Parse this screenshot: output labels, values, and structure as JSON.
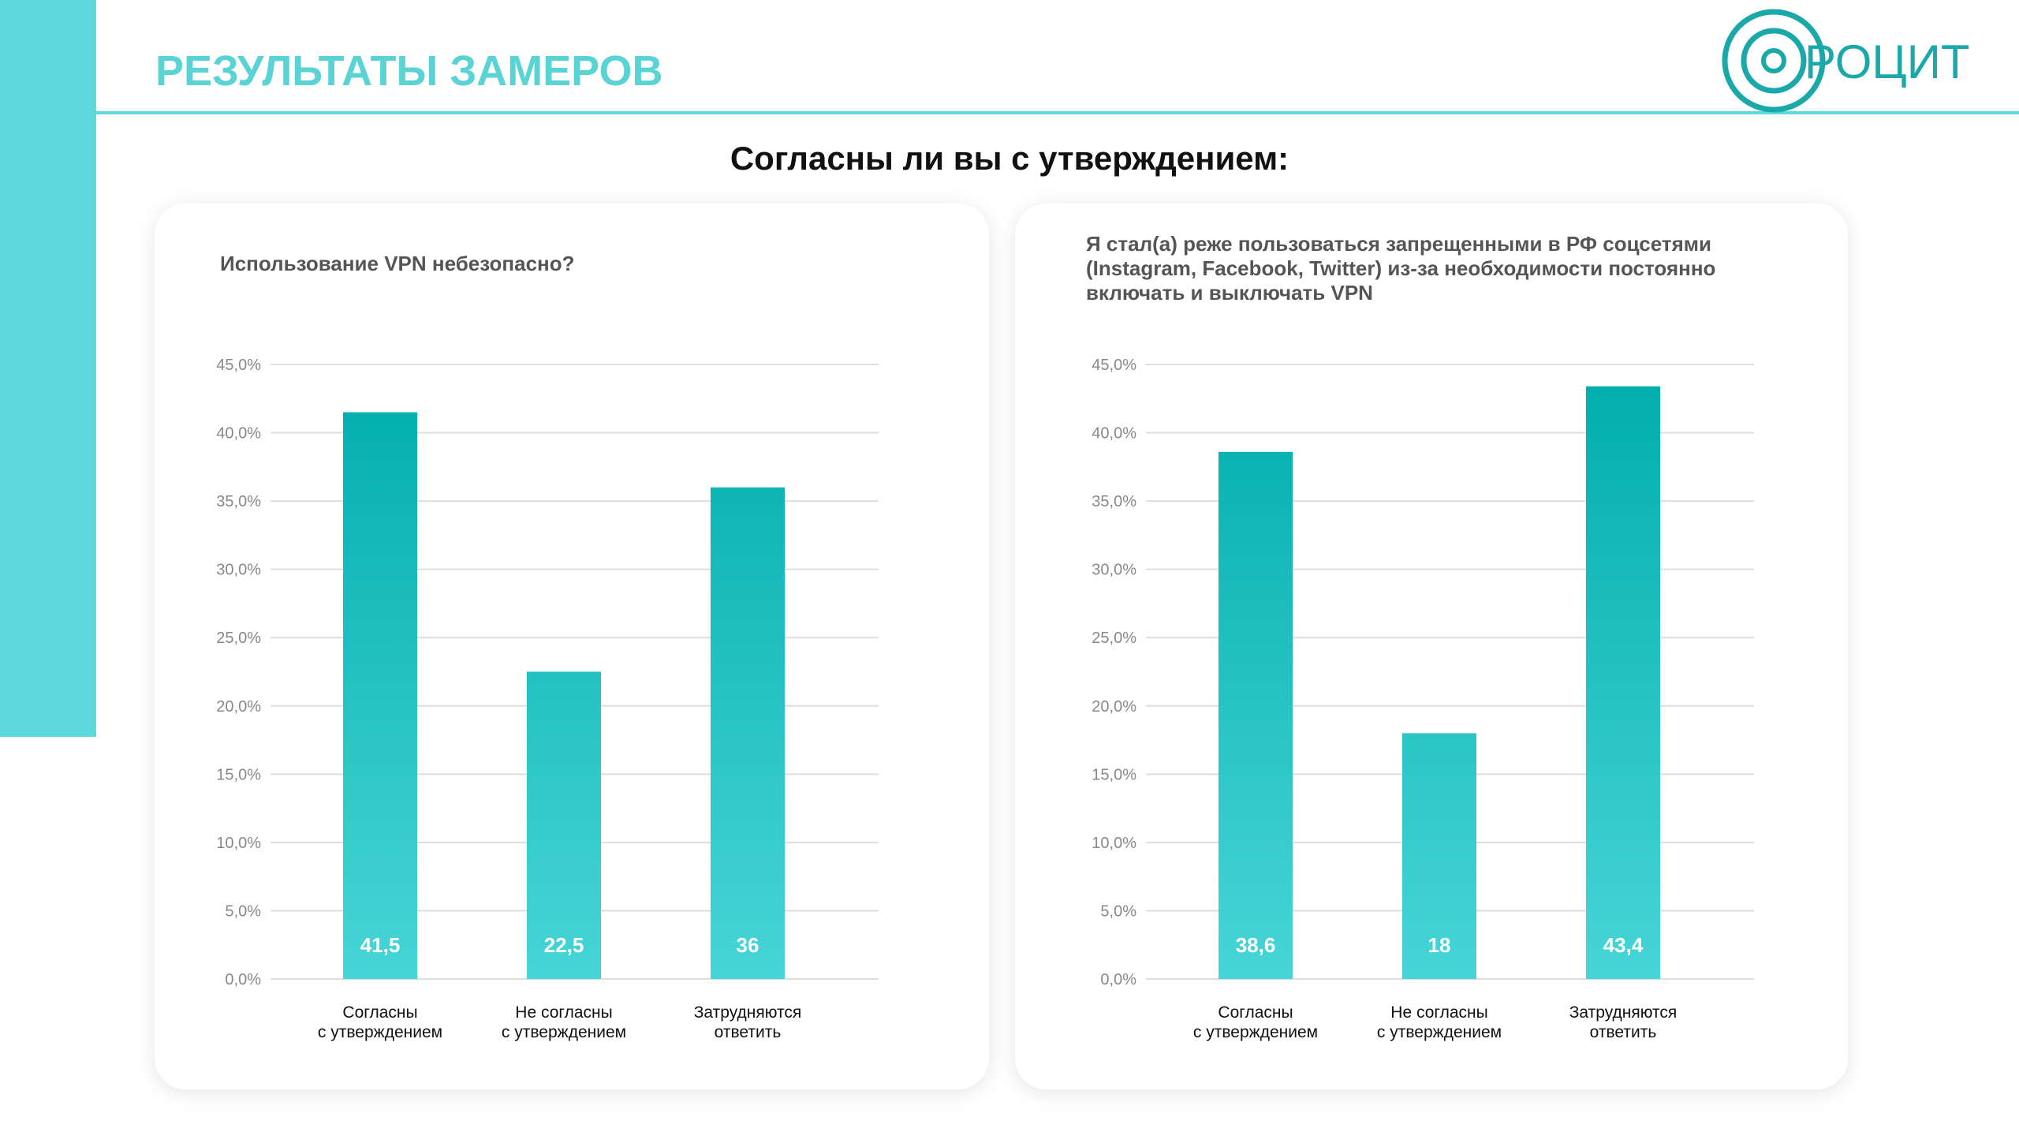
{
  "header": {
    "title": "РЕЗУЛЬТАТЫ ЗАМЕРОВ",
    "logo": "РОЦИТ"
  },
  "subtitle": "Согласны ли вы с утверждением:",
  "chart_data": [
    {
      "type": "bar",
      "title": [
        "Использование VPN небезопасно?"
      ],
      "categories": [
        [
          "Согласны",
          "с утверждением"
        ],
        [
          "Не согласны",
          "с утверждением"
        ],
        [
          "Затрудняются",
          "ответить"
        ]
      ],
      "values": [
        41.5,
        22.5,
        36
      ],
      "value_labels": [
        "41,5",
        "22,5",
        "36"
      ],
      "colors": [
        "#00adac",
        "#47d5d7"
      ],
      "ylim": [
        0,
        45
      ],
      "yticks": [
        {
          "value": 0,
          "label": "0,0%"
        },
        {
          "value": 5,
          "label": "5,0%"
        },
        {
          "value": 10,
          "label": "10,0%"
        },
        {
          "value": 15,
          "label": "15,0%"
        },
        {
          "value": 20,
          "label": "20,0%"
        },
        {
          "value": 25,
          "label": "25,0%"
        },
        {
          "value": 30,
          "label": "30,0%"
        },
        {
          "value": 35,
          "label": "35,0%"
        },
        {
          "value": 40,
          "label": "40,0%"
        },
        {
          "value": 45,
          "label": "45,0%"
        }
      ],
      "grid": true
    },
    {
      "type": "bar",
      "title": [
        "Я стал(а) реже пользоваться запрещенными в РФ соцсетями",
        "(Instagram, Facebook, Twitter) из-за необходимости постоянно",
        "включать и выключать VPN"
      ],
      "categories": [
        [
          "Согласны",
          "с утверждением"
        ],
        [
          "Не согласны",
          "с утверждением"
        ],
        [
          "Затрудняются",
          "ответить"
        ]
      ],
      "values": [
        38.6,
        18,
        43.4
      ],
      "value_labels": [
        "38,6",
        "18",
        "43,4"
      ],
      "colors": [
        "#00adac",
        "#47d5d7"
      ],
      "ylim": [
        0,
        45
      ],
      "yticks": [
        {
          "value": 0,
          "label": "0,0%"
        },
        {
          "value": 5,
          "label": "5,0%"
        },
        {
          "value": 10,
          "label": "10,0%"
        },
        {
          "value": 15,
          "label": "15,0%"
        },
        {
          "value": 20,
          "label": "20,0%"
        },
        {
          "value": 25,
          "label": "25,0%"
        },
        {
          "value": 30,
          "label": "30,0%"
        },
        {
          "value": 35,
          "label": "35,0%"
        },
        {
          "value": 40,
          "label": "40,0%"
        },
        {
          "value": 45,
          "label": "45,0%"
        }
      ],
      "grid": true
    }
  ]
}
